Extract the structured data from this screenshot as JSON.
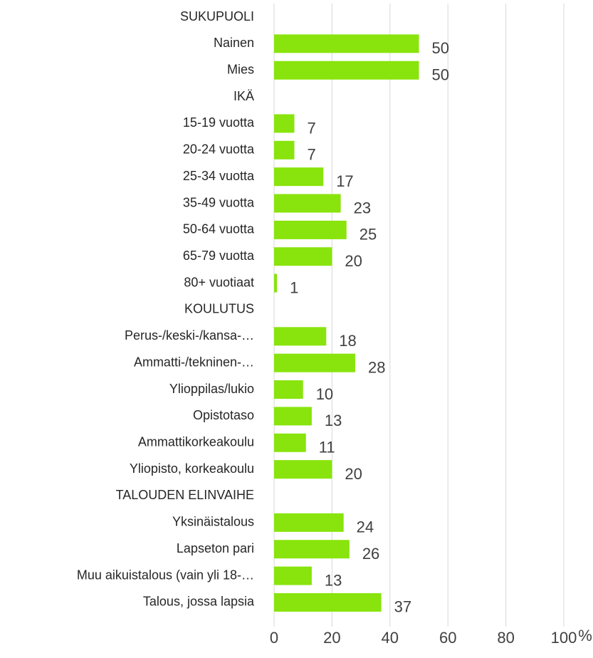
{
  "chart_data": {
    "type": "hbar",
    "categories": [
      "SUKUPUOLI",
      "Nainen",
      "Mies",
      "IKÄ",
      "15-19 vuotta",
      "20-24 vuotta",
      "25-34 vuotta",
      "35-49 vuotta",
      "50-64 vuotta",
      "65-79 vuotta",
      "80+ vuotiaat",
      "KOULUTUS",
      "Perus-/keski-/kansa-…",
      "Ammatti-/tekninen-…",
      "Ylioppilas/lukio",
      "Opistotaso",
      "Ammattikorkeakoulu",
      "Yliopisto, korkeakoulu",
      "TALOUDEN ELINVAIHE",
      "Yksinäistalous",
      "Lapseton pari",
      "Muu aikuistalous (vain yli 18-…",
      "Talous, jossa lapsia"
    ],
    "values": [
      null,
      50,
      50,
      null,
      7,
      7,
      17,
      23,
      25,
      20,
      1,
      null,
      18,
      28,
      10,
      13,
      11,
      20,
      null,
      24,
      26,
      13,
      37
    ],
    "color": "#88e40c",
    "xlim": [
      0,
      100
    ],
    "xticks": [
      0,
      20,
      40,
      60,
      80,
      100
    ],
    "xlabel": "%",
    "grid": true
  }
}
